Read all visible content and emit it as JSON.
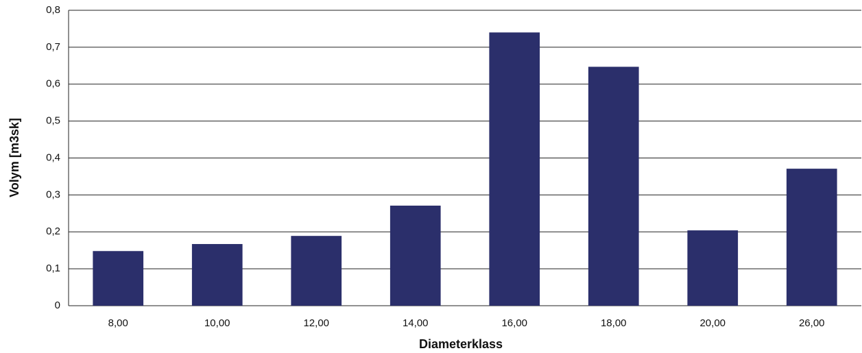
{
  "chart_data": {
    "type": "bar",
    "x_label": "Diameterklass",
    "y_label": "Volym [m3sk]",
    "categories": [
      "8,00",
      "10,00",
      "12,00",
      "14,00",
      "16,00",
      "18,00",
      "20,00",
      "26,00"
    ],
    "values": [
      0.148,
      0.167,
      0.189,
      0.271,
      0.74,
      0.647,
      0.204,
      0.371
    ],
    "color": "#2b2f6b",
    "ylim": [
      0,
      0.8
    ],
    "yticks": [
      0,
      {
        "value": 0.1,
        "label": "0,1"
      },
      {
        "value": 0.2,
        "label": "0,2"
      },
      {
        "value": 0.3,
        "label": "0,3"
      },
      {
        "value": 0.4,
        "label": "0,4"
      },
      {
        "value": 0.5,
        "label": "0,5"
      },
      {
        "value": 0.6,
        "label": "0,6"
      },
      {
        "value": 0.7,
        "label": "0,7"
      },
      {
        "value": 0.8,
        "label": "0,8"
      }
    ],
    "grid": true
  }
}
